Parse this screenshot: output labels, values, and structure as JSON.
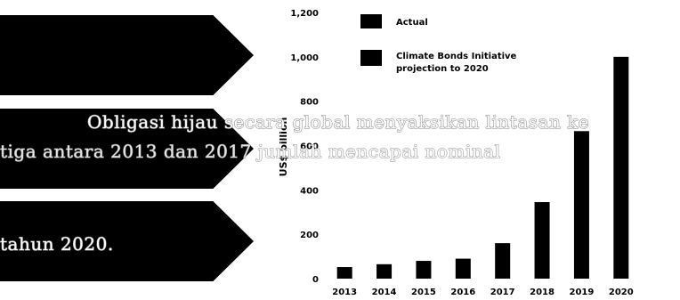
{
  "overlay_text": {
    "line1": "Obligasi hijau secara global menyaksikan lintasan ke",
    "line2": "tiga antara 2013 dan 2017 jumlah mencapai nominal ",
    "line3": "tahun 2020."
  },
  "colors": {
    "bar": "#000000",
    "background": "#ffffff"
  },
  "chart_data": {
    "type": "bar",
    "categories": [
      "2013",
      "2014",
      "2015",
      "2016",
      "2017",
      "2018",
      "2019",
      "2020"
    ],
    "values": [
      52,
      65,
      80,
      90,
      160,
      345,
      665,
      1000
    ],
    "ylabel": "US$ billion",
    "ylim": [
      0,
      1200
    ],
    "yticks": [
      "0",
      "200",
      "400",
      "600",
      "800",
      "1,000",
      "1,200"
    ],
    "legend": {
      "placement": "top-left",
      "entries": [
        "Actual",
        "Climate Bonds Initiative projection to 2020"
      ]
    }
  }
}
